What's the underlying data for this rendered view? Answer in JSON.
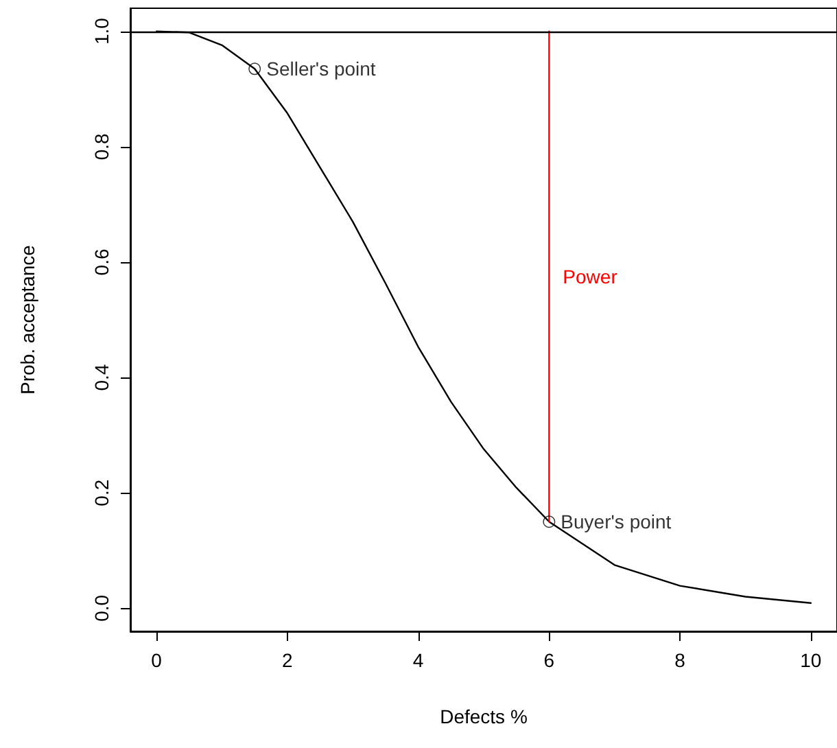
{
  "chart_data": {
    "type": "line",
    "xlabel": "Defects %",
    "ylabel": "Prob. acceptance",
    "xlim": [
      -0.4,
      10.4
    ],
    "xticks": [
      0,
      2,
      4,
      6,
      8,
      10
    ],
    "ylim": [
      -0.04,
      1.04
    ],
    "yticks": [
      {
        "value": 0,
        "label": "0.0"
      },
      {
        "value": 0.2,
        "label": "0.2"
      },
      {
        "value": 0.4,
        "label": "0.4"
      },
      {
        "value": 0.6,
        "label": "0.6"
      },
      {
        "value": 0.8,
        "label": "0.8"
      },
      {
        "value": 1,
        "label": "1.0"
      }
    ],
    "grid": false,
    "legend": false,
    "series": [
      {
        "type": "line",
        "marker": "none",
        "color": "#000000",
        "x": [
          0,
          0.5,
          1,
          1.5,
          2,
          2.5,
          3,
          3.5,
          4,
          4.5,
          5,
          5.5,
          6,
          7,
          8,
          9,
          10
        ],
        "values": [
          1,
          0.998,
          0.976,
          0.935,
          0.858,
          0.764,
          0.67,
          0.563,
          0.453,
          0.358,
          0.276,
          0.209,
          0.15,
          0.075,
          0.039,
          0.02,
          0.009
        ]
      },
      {
        "type": "line",
        "name": "Power",
        "marker": "none",
        "color": "#ff0000",
        "x": [
          6,
          6
        ],
        "values": [
          0.15,
          1
        ]
      },
      {
        "type": "scatter",
        "marker": "circle",
        "color": "#000000",
        "x": [
          1.5,
          6
        ],
        "values": [
          0.935,
          0.15
        ],
        "value_labels": [
          "Seller's point",
          "Buyer's point"
        ]
      }
    ],
    "ref_lines": [
      {
        "axis": "y",
        "value": 1,
        "color": "#000000"
      }
    ]
  }
}
